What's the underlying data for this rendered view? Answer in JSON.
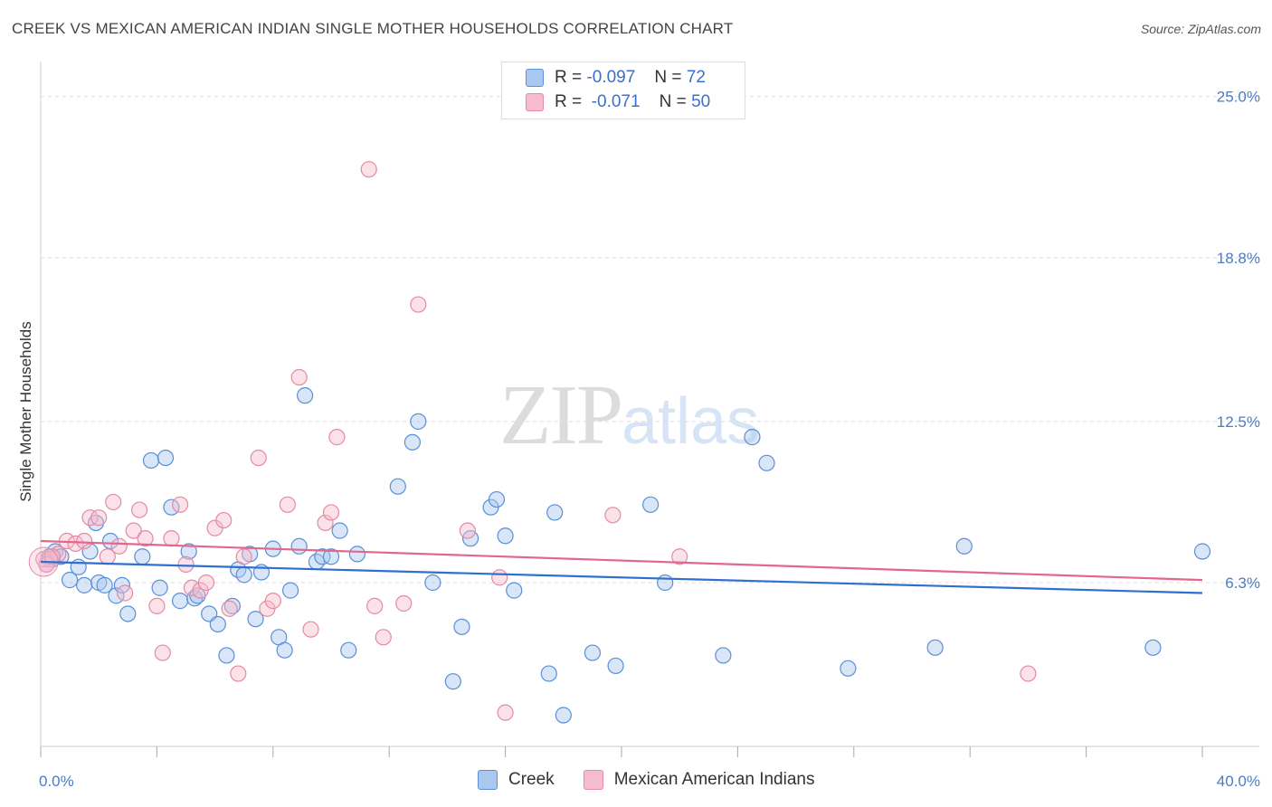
{
  "header": {
    "title": "CREEK VS MEXICAN AMERICAN INDIAN SINGLE MOTHER HOUSEHOLDS CORRELATION CHART",
    "source": "Source: ZipAtlas.com"
  },
  "watermark": {
    "zip": "ZIP",
    "atlas": "atlas"
  },
  "legend": {
    "rows": [
      {
        "r_label": "R =",
        "r_value": "-0.097",
        "n_label": "N =",
        "n_value": "72"
      },
      {
        "r_label": "R =",
        "r_value": "-0.071",
        "n_label": "N =",
        "n_value": "50"
      }
    ]
  },
  "colors": {
    "creek_fill": "#a9c8f0",
    "creek_stroke": "#5b8fd6",
    "creek_line": "#2f6fd0",
    "mexican_fill": "#f6bccd",
    "mexican_stroke": "#e48aa5",
    "mexican_line": "#e2668e",
    "grid": "#dddddd",
    "tick_label": "#4a7cc9"
  },
  "chart_data": {
    "type": "scatter",
    "title": "CREEK VS MEXICAN AMERICAN INDIAN SINGLE MOTHER HOUSEHOLDS CORRELATION CHART",
    "xlabel": "",
    "ylabel": "Single Mother Households",
    "xlim": [
      0,
      40
    ],
    "ylim": [
      0,
      26
    ],
    "x_tick_labels": [
      "0.0%",
      "40.0%"
    ],
    "y_ticks": [
      6.3,
      12.5,
      18.8,
      25.0
    ],
    "y_tick_labels": [
      "6.3%",
      "12.5%",
      "18.8%",
      "25.0%"
    ],
    "grid": true,
    "legend_position": "top-center",
    "series": [
      {
        "name": "Creek",
        "R": -0.097,
        "N": 72,
        "trend": [
          [
            0,
            7.1
          ],
          [
            40,
            5.9
          ]
        ],
        "points": [
          [
            0.2,
            7.0
          ],
          [
            0.3,
            7.3
          ],
          [
            0.4,
            7.2
          ],
          [
            0.5,
            7.5
          ],
          [
            0.7,
            7.3
          ],
          [
            1.0,
            6.4
          ],
          [
            1.3,
            6.9
          ],
          [
            1.5,
            6.2
          ],
          [
            1.7,
            7.5
          ],
          [
            1.9,
            8.6
          ],
          [
            2.0,
            6.3
          ],
          [
            2.2,
            6.2
          ],
          [
            2.4,
            7.9
          ],
          [
            2.6,
            5.8
          ],
          [
            2.8,
            6.2
          ],
          [
            3.0,
            5.1
          ],
          [
            3.5,
            7.3
          ],
          [
            3.8,
            11.0
          ],
          [
            4.1,
            6.1
          ],
          [
            4.3,
            11.1
          ],
          [
            4.5,
            9.2
          ],
          [
            4.8,
            5.6
          ],
          [
            5.1,
            7.5
          ],
          [
            5.3,
            5.7
          ],
          [
            5.4,
            5.8
          ],
          [
            5.8,
            5.1
          ],
          [
            6.1,
            4.7
          ],
          [
            6.4,
            3.5
          ],
          [
            6.6,
            5.4
          ],
          [
            6.8,
            6.8
          ],
          [
            7.0,
            6.6
          ],
          [
            7.2,
            7.4
          ],
          [
            7.4,
            4.9
          ],
          [
            7.6,
            6.7
          ],
          [
            8.0,
            7.6
          ],
          [
            8.2,
            4.2
          ],
          [
            8.4,
            3.7
          ],
          [
            8.6,
            6.0
          ],
          [
            8.9,
            7.7
          ],
          [
            9.1,
            13.5
          ],
          [
            9.5,
            7.1
          ],
          [
            9.7,
            7.3
          ],
          [
            10.0,
            7.3
          ],
          [
            10.3,
            8.3
          ],
          [
            10.6,
            3.7
          ],
          [
            10.9,
            7.4
          ],
          [
            12.3,
            10.0
          ],
          [
            12.8,
            11.7
          ],
          [
            13.0,
            12.5
          ],
          [
            13.5,
            6.3
          ],
          [
            14.2,
            2.5
          ],
          [
            14.5,
            4.6
          ],
          [
            14.8,
            8.0
          ],
          [
            15.5,
            9.2
          ],
          [
            15.7,
            9.5
          ],
          [
            16.0,
            8.1
          ],
          [
            16.3,
            6.0
          ],
          [
            17.5,
            2.8
          ],
          [
            17.7,
            9.0
          ],
          [
            18.0,
            1.2
          ],
          [
            19.0,
            3.6
          ],
          [
            19.8,
            3.1
          ],
          [
            21.0,
            9.3
          ],
          [
            21.5,
            6.3
          ],
          [
            23.5,
            3.5
          ],
          [
            24.5,
            11.9
          ],
          [
            25.0,
            10.9
          ],
          [
            27.8,
            3.0
          ],
          [
            30.8,
            3.8
          ],
          [
            31.8,
            7.7
          ],
          [
            38.3,
            3.8
          ],
          [
            40.0,
            7.5
          ]
        ]
      },
      {
        "name": "Mexican American Indians",
        "R": -0.071,
        "N": 50,
        "trend": [
          [
            0,
            7.9
          ],
          [
            40,
            6.4
          ]
        ],
        "points": [
          [
            0.1,
            7.2
          ],
          [
            0.3,
            7.2
          ],
          [
            0.6,
            7.4
          ],
          [
            0.9,
            7.9
          ],
          [
            1.2,
            7.8
          ],
          [
            1.5,
            7.9
          ],
          [
            1.7,
            8.8
          ],
          [
            2.0,
            8.8
          ],
          [
            2.3,
            7.3
          ],
          [
            2.5,
            9.4
          ],
          [
            2.7,
            7.7
          ],
          [
            2.9,
            5.9
          ],
          [
            3.2,
            8.3
          ],
          [
            3.4,
            9.1
          ],
          [
            3.6,
            8.0
          ],
          [
            4.0,
            5.4
          ],
          [
            4.2,
            3.6
          ],
          [
            4.5,
            8.0
          ],
          [
            4.8,
            9.3
          ],
          [
            5.0,
            7.0
          ],
          [
            5.2,
            6.1
          ],
          [
            5.5,
            6.0
          ],
          [
            5.7,
            6.3
          ],
          [
            6.0,
            8.4
          ],
          [
            6.3,
            8.7
          ],
          [
            6.5,
            5.3
          ],
          [
            6.8,
            2.8
          ],
          [
            7.0,
            7.3
          ],
          [
            7.5,
            11.1
          ],
          [
            7.8,
            5.3
          ],
          [
            8.0,
            5.6
          ],
          [
            8.5,
            9.3
          ],
          [
            8.9,
            14.2
          ],
          [
            9.3,
            4.5
          ],
          [
            9.8,
            8.6
          ],
          [
            10.0,
            9.0
          ],
          [
            10.2,
            11.9
          ],
          [
            11.5,
            5.4
          ],
          [
            11.8,
            4.2
          ],
          [
            11.3,
            22.2
          ],
          [
            12.5,
            5.5
          ],
          [
            13.0,
            17.0
          ],
          [
            14.7,
            8.3
          ],
          [
            15.8,
            6.5
          ],
          [
            16.0,
            1.3
          ],
          [
            19.7,
            8.9
          ],
          [
            22.0,
            7.3
          ],
          [
            34.0,
            2.8
          ],
          [
            0.2,
            7.0
          ],
          [
            0.4,
            7.3
          ]
        ]
      }
    ]
  },
  "bottom_legend": {
    "items": [
      {
        "label": "Creek"
      },
      {
        "label": "Mexican American Indians"
      }
    ]
  }
}
